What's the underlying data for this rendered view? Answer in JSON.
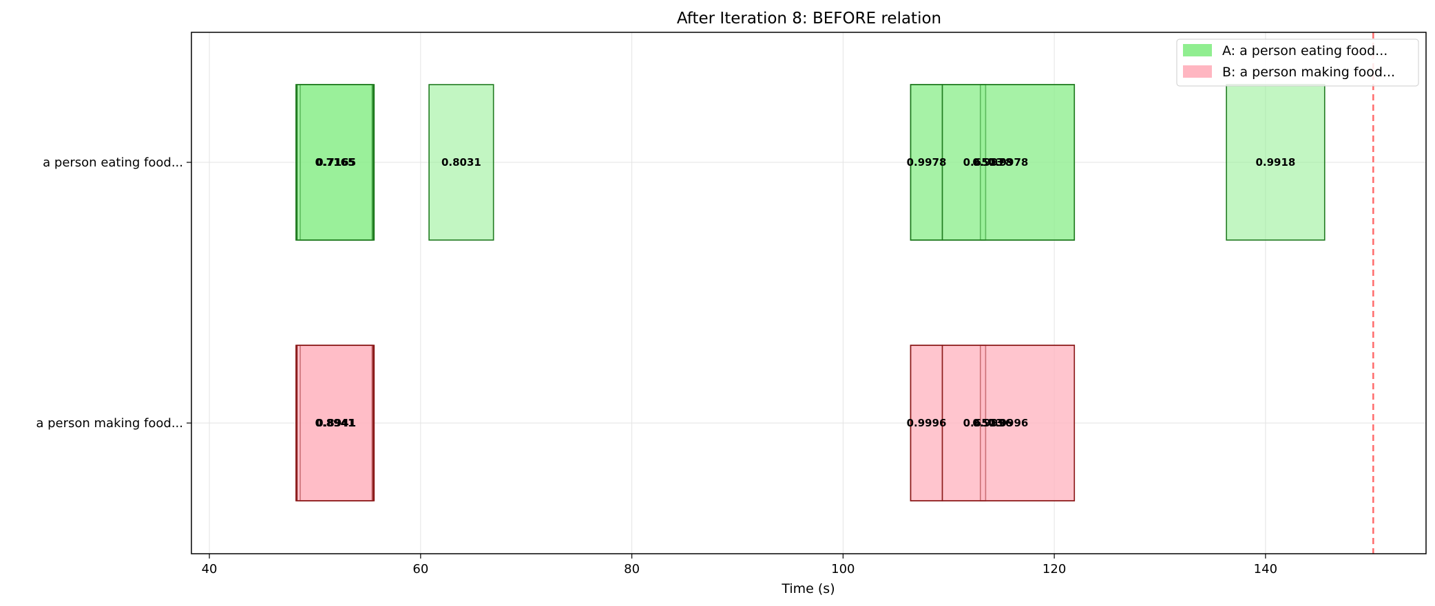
{
  "chart_data": {
    "type": "timeline",
    "title": "After Iteration 8: BEFORE relation",
    "xlabel": "Time (s)",
    "ylabel": "",
    "xlim": [
      38.3,
      155.2
    ],
    "xticks": [
      40,
      60,
      80,
      100,
      120,
      140
    ],
    "grid": true,
    "legend_position": "top-right",
    "reference_line": {
      "x": 150.2,
      "style": "dashed",
      "color": "#ff6b6b"
    },
    "rows": [
      {
        "label": "a person eating food...",
        "legend": "A: a person eating food...",
        "fill": "#90ee90",
        "edge": "#1f7a1f",
        "segments": [
          {
            "start": 48.2,
            "end": 55.6,
            "score": "0.7165"
          },
          {
            "start": 48.6,
            "end": 55.4,
            "score": "0.7165"
          },
          {
            "start": 48.3,
            "end": 55.5,
            "score": "0.7165"
          },
          {
            "start": 60.8,
            "end": 66.9,
            "score": "0.8031"
          },
          {
            "start": 106.4,
            "end": 109.4,
            "score": "0.9978"
          },
          {
            "start": 106.4,
            "end": 121.9,
            "score": "0.9978"
          },
          {
            "start": 113.0,
            "end": 113.5,
            "score": "0.6573"
          },
          {
            "start": 109.4,
            "end": 121.9,
            "score": "0.9978"
          },
          {
            "start": 136.3,
            "end": 145.6,
            "score": "0.9918"
          }
        ]
      },
      {
        "label": "a person making food...",
        "legend": "B: a person making food...",
        "fill": "#ffb6c1",
        "edge": "#8b1a1a",
        "segments": [
          {
            "start": 48.2,
            "end": 55.6,
            "score": "0.8941"
          },
          {
            "start": 48.6,
            "end": 55.4,
            "score": "0.8941"
          },
          {
            "start": 48.3,
            "end": 55.5,
            "score": "0.8941"
          },
          {
            "start": 106.4,
            "end": 109.4,
            "score": "0.9996"
          },
          {
            "start": 106.4,
            "end": 121.9,
            "score": "0.9996"
          },
          {
            "start": 113.0,
            "end": 113.5,
            "score": "0.6573"
          },
          {
            "start": 109.4,
            "end": 121.9,
            "score": "0.9996"
          }
        ]
      }
    ]
  }
}
